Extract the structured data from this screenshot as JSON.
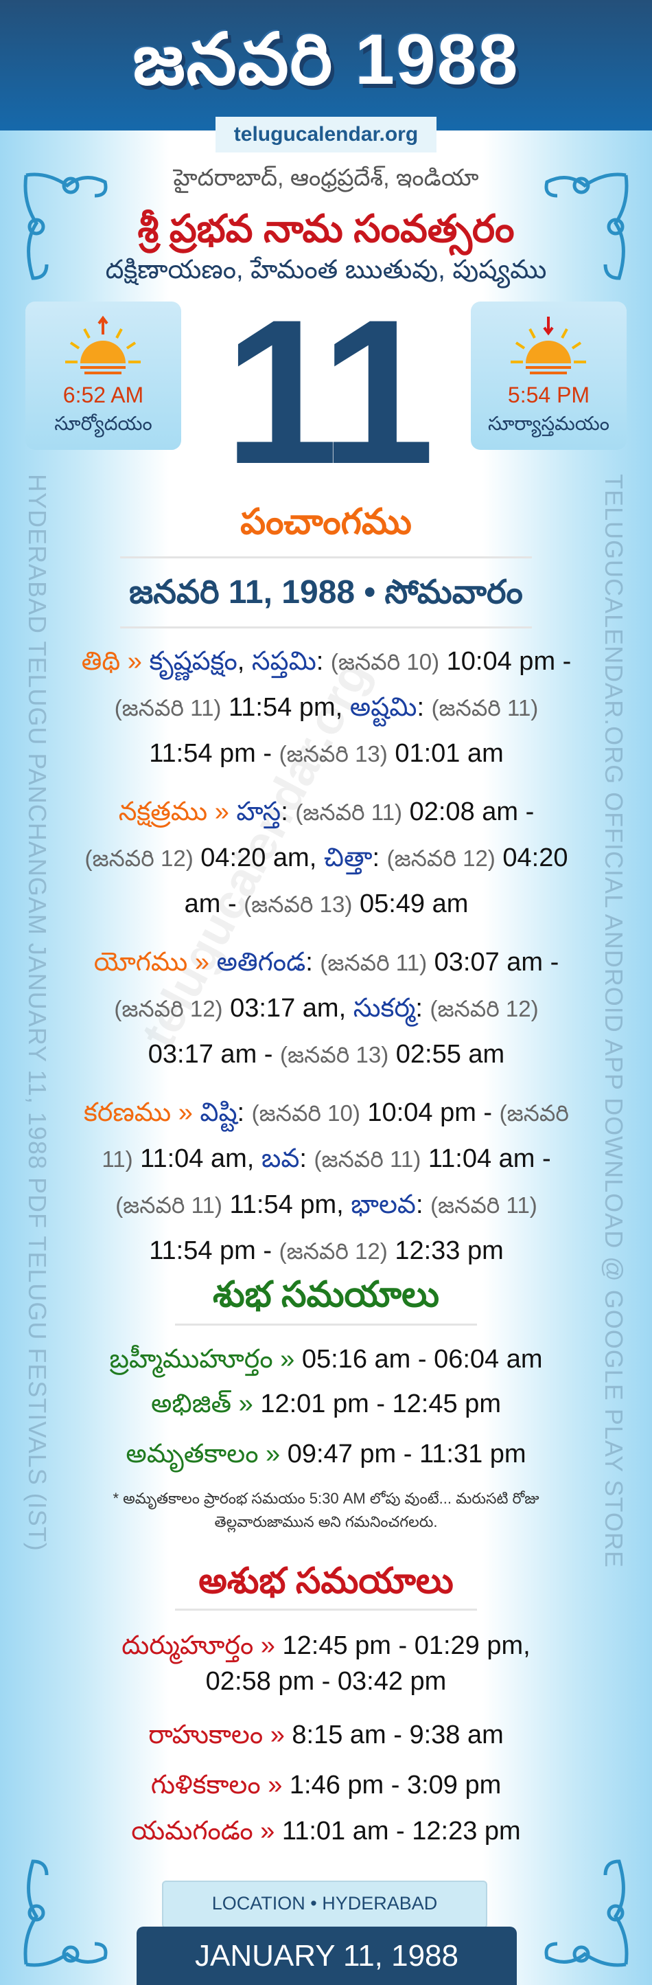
{
  "header": {
    "title": "జనవరి 1988",
    "site": "telugucalendar.org"
  },
  "location_line": "హైదరాబాద్, ఆంధ్రప్రదేశ్, ఇండియా",
  "samvatsaram": "శ్రీ ప్రభవ నామ సంవత్సరం",
  "ayanam_line": "దక్షిణాయణం, హేమంత ఋతువు, పుష్యము",
  "sunrise": {
    "time": "6:52 AM",
    "label": "సూర్యోదయం",
    "icon": "sunrise-icon"
  },
  "sunset": {
    "time": "5:54 PM",
    "label": "సూర్యాస్తమయం",
    "icon": "sunset-icon"
  },
  "day": "11",
  "panchangam": {
    "title": "పంచాంగము",
    "date_line": "జనవరి 11, 1988 • సోమవారం",
    "entries": [
      {
        "label": "తిథి",
        "paksha": "కృష్ణపక్షం",
        "items": [
          {
            "name": "సప్తమి",
            "start_date": "(జనవరి 10)",
            "start_time": "10:04 pm",
            "end_date": "(జనవరి 11)",
            "end_time": "11:54 pm"
          },
          {
            "name": "అష్టమి",
            "start_date": "(జనవరి 11)",
            "start_time": "11:54 pm",
            "end_date": "(జనవరి 13)",
            "end_time": "01:01 am"
          }
        ]
      },
      {
        "label": "నక్షత్రము",
        "items": [
          {
            "name": "హస్త",
            "start_date": "(జనవరి 11)",
            "start_time": "02:08 am",
            "end_date": "(జనవరి 12)",
            "end_time": "04:20 am"
          },
          {
            "name": "చిత్తా",
            "start_date": "(జనవరి 12)",
            "start_time": "04:20 am",
            "end_date": "(జనవరి 13)",
            "end_time": "05:49 am"
          }
        ]
      },
      {
        "label": "యోగము",
        "items": [
          {
            "name": "అతిగండ",
            "start_date": "(జనవరి 11)",
            "start_time": "03:07 am",
            "end_date": "(జనవరి 12)",
            "end_time": "03:17 am"
          },
          {
            "name": "సుకర్మ",
            "start_date": "(జనవరి 12)",
            "start_time": "03:17 am",
            "end_date": "(జనవరి 13)",
            "end_time": "02:55 am"
          }
        ]
      },
      {
        "label": "కరణము",
        "items": [
          {
            "name": "విష్టి",
            "start_date": "(జనవరి 10)",
            "start_time": "10:04 pm",
            "end_date": "(జనవరి 11)",
            "end_time": "11:04 am"
          },
          {
            "name": "బవ",
            "start_date": "(జనవరి 11)",
            "start_time": "11:04 am",
            "end_date": "(జనవరి 11)",
            "end_time": "11:54 pm"
          },
          {
            "name": "భాలవ",
            "start_date": "(జనవరి 11)",
            "start_time": "11:54 pm",
            "end_date": "(జనవరి 12)",
            "end_time": "12:33 pm"
          }
        ]
      }
    ]
  },
  "shubha": {
    "title": "శుభ సమయాలు",
    "items": [
      {
        "label": "బ్రహ్మీముహూర్తం",
        "time": "05:16 am - 06:04 am"
      },
      {
        "label": "అభిజిత్",
        "time": "12:01 pm - 12:45 pm"
      },
      {
        "label": "అమృతకాలం",
        "time": "09:47 pm - 11:31 pm"
      }
    ],
    "note": "* అమృతకాలం ప్రారంభ సమయం 5:30 AM లోపు వుంటే... మరుసటి రోజు తెల్లవారుజామున అని గమనించగలరు."
  },
  "ashubha": {
    "title": "అశుభ సమయాలు",
    "items": [
      {
        "label": "దుర్ముహూర్తం",
        "time": "12:45 pm - 01:29 pm,",
        "time2": "02:58 pm - 03:42 pm"
      },
      {
        "label": "రాహుకాలం",
        "time": "8:15 am - 9:38 am"
      },
      {
        "label": "గుళికకాలం",
        "time": "1:46 pm - 3:09 pm"
      },
      {
        "label": "యమగండం",
        "time": "11:01 am - 12:23 pm"
      }
    ]
  },
  "separator": "»",
  "footer": {
    "location": "LOCATION • HYDERABAD",
    "date": "JANUARY 11, 1988"
  },
  "side_text": {
    "left": "HYDERABAD TELUGU PANCHANGAM JANUARY 11, 1988 PDF TELUGU FESTIVALS (IST)",
    "right": "TELUGUCALENDAR.ORG OFFICIAL ANDROID APP DOWNLOAD @ GOOGLE PLAY STORE"
  },
  "watermark": "telugucalendar.org",
  "colors": {
    "header": "#1e5a91",
    "red": "#c8161d",
    "orange": "#f26a10",
    "green": "#1f7a1f",
    "navy": "#1f4a73",
    "name_blue": "#1a3fa0"
  }
}
